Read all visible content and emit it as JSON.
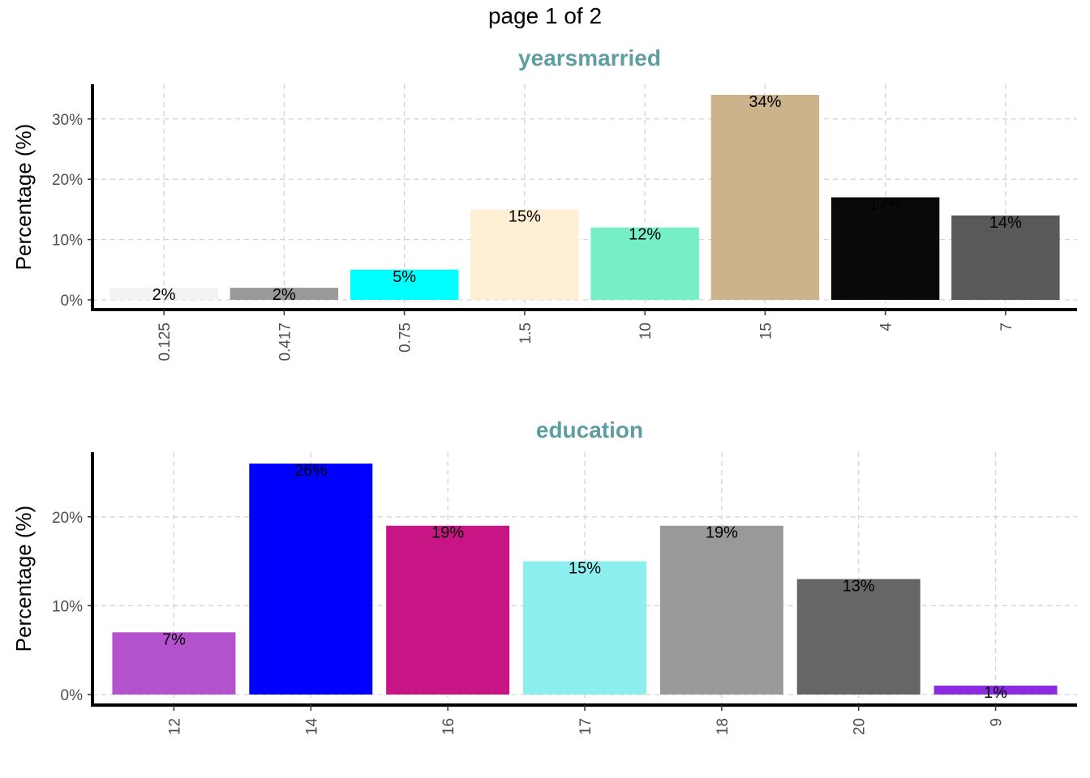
{
  "page_title": "page 1 of 2",
  "colors": {
    "title": "#5f9ea0",
    "grid": "#d3d3d3",
    "axis": "#000000",
    "tick_text": "#4d4d4d"
  },
  "chart_data": [
    {
      "type": "bar",
      "title": "yearsmarried",
      "xlabel": "",
      "ylabel": "Percentage (%)",
      "ylim": [
        0,
        35
      ],
      "yticks": [
        0,
        10,
        20,
        30
      ],
      "ytick_labels": [
        "0%",
        "10%",
        "20%",
        "30%"
      ],
      "grid": true,
      "categories": [
        "0.125",
        "0.417",
        "0.75",
        "1.5",
        "10",
        "15",
        "4",
        "7"
      ],
      "values": [
        2,
        2,
        5,
        15,
        12,
        34,
        17,
        14
      ],
      "data_labels": [
        "2%",
        "2%",
        "5%",
        "15%",
        "12%",
        "34%",
        "17%",
        "14%"
      ],
      "colors": [
        "#f2f2f2",
        "#999999",
        "#00ffff",
        "#ffefd5",
        "#76eec6",
        "#cdb38b",
        "#0a0a0a",
        "#595959"
      ]
    },
    {
      "type": "bar",
      "title": "education",
      "xlabel": "",
      "ylabel": "Percentage (%)",
      "ylim": [
        0,
        26.5
      ],
      "yticks": [
        0,
        10,
        20
      ],
      "ytick_labels": [
        "0%",
        "10%",
        "20%"
      ],
      "grid": true,
      "categories": [
        "12",
        "14",
        "16",
        "17",
        "18",
        "20",
        "9"
      ],
      "values": [
        7,
        26,
        19,
        15,
        19,
        13,
        1
      ],
      "data_labels": [
        "7%",
        "26%",
        "19%",
        "15%",
        "19%",
        "13%",
        "1%"
      ],
      "colors": [
        "#b452cd",
        "#0000ff",
        "#c71585",
        "#8deeee",
        "#999999",
        "#666666",
        "#8a2be2"
      ]
    }
  ]
}
